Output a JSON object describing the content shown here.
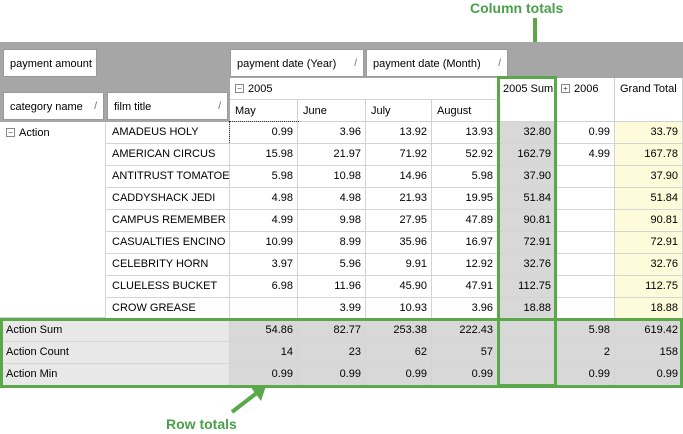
{
  "annotations": {
    "column_totals": "Column totals",
    "row_totals": "Row totals"
  },
  "fields": {
    "data": "payment amount",
    "col1": "payment date (Year)",
    "col2": "payment date (Month)",
    "row1": "category name",
    "row2": "film title",
    "sort_glyph": "/"
  },
  "columns": {
    "year_2005": "2005",
    "year_2005_sum": "2005 Sum",
    "year_2006": "2006",
    "grand_total": "Grand Total",
    "months": [
      "May",
      "June",
      "July",
      "August"
    ]
  },
  "category": "Action",
  "rows": [
    {
      "film": "AMADEUS HOLY",
      "v": [
        "0.99",
        "3.96",
        "13.92",
        "13.93",
        "32.80",
        "0.99",
        "33.79"
      ]
    },
    {
      "film": "AMERICAN CIRCUS",
      "v": [
        "15.98",
        "21.97",
        "71.92",
        "52.92",
        "162.79",
        "4.99",
        "167.78"
      ]
    },
    {
      "film": "ANTITRUST TOMATOES",
      "v": [
        "5.98",
        "10.98",
        "14.96",
        "5.98",
        "37.90",
        "",
        "37.90"
      ]
    },
    {
      "film": "CADDYSHACK JEDI",
      "v": [
        "4.98",
        "4.98",
        "21.93",
        "19.95",
        "51.84",
        "",
        "51.84"
      ]
    },
    {
      "film": "CAMPUS REMEMBER",
      "v": [
        "4.99",
        "9.98",
        "27.95",
        "47.89",
        "90.81",
        "",
        "90.81"
      ]
    },
    {
      "film": "CASUALTIES ENCINO",
      "v": [
        "10.99",
        "8.99",
        "35.96",
        "16.97",
        "72.91",
        "",
        "72.91"
      ]
    },
    {
      "film": "CELEBRITY HORN",
      "v": [
        "3.97",
        "5.96",
        "9.91",
        "12.92",
        "32.76",
        "",
        "32.76"
      ]
    },
    {
      "film": "CLUELESS BUCKET",
      "v": [
        "6.98",
        "11.96",
        "45.90",
        "47.91",
        "112.75",
        "",
        "112.75"
      ]
    },
    {
      "film": "CROW GREASE",
      "v": [
        "",
        "3.99",
        "10.93",
        "3.96",
        "18.88",
        "",
        "18.88"
      ]
    }
  ],
  "totals": [
    {
      "label": "Action Sum",
      "v": [
        "54.86",
        "82.77",
        "253.38",
        "222.43",
        "",
        "5.98",
        "619.42"
      ]
    },
    {
      "label": "Action Count",
      "v": [
        "14",
        "23",
        "62",
        "57",
        "",
        "2",
        "158"
      ]
    },
    {
      "label": "Action Min",
      "v": [
        "0.99",
        "0.99",
        "0.99",
        "0.99",
        "",
        "0.99",
        "0.99"
      ]
    }
  ],
  "colors": {
    "accent_green": "#5aa84a",
    "total_gray": "#d8d8d8",
    "grand_yellow": "#fefbdb",
    "header_gray": "#a6a6a6"
  }
}
